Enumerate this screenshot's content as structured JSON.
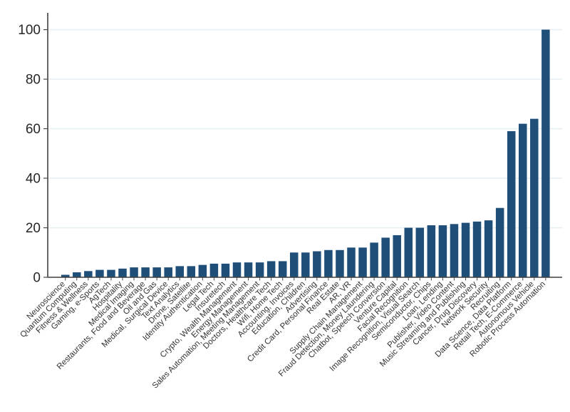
{
  "chart_data": {
    "type": "bar",
    "title": "",
    "xlabel": "",
    "ylabel": "",
    "ylim": [
      0,
      100
    ],
    "yticks": [
      0,
      20,
      40,
      60,
      80,
      100
    ],
    "grid": "horizontal",
    "legend": "none",
    "categories": [
      "Neuroscience",
      "Quantum Computing",
      "Fitness & Wellness",
      "Gaming, e-Sports",
      "AgTech",
      "Hospitality",
      "Medical Imaging",
      "Restaurants, Food and Beverage",
      "Oil and Gas",
      "Medical, Surgical Device",
      "Text Analytics",
      "Drone, Satellite",
      "Identity Authentication",
      "Legal Tech",
      "Insuretech",
      "Crypto, Wealth Management",
      "Energy Management",
      "Sales Automation, Meeting Management",
      "Doctors, Healthcare Tech",
      "Wifi, Home Tech",
      "Accounting, Invoices",
      "Education, Children",
      "Advertising",
      "Credit Card, Personal Finance",
      "Real Estate",
      "AR, VR",
      "Supply Chain Management",
      "Fraud Detection, Money Laundering",
      "Chatbot, Speech Conversion",
      "Venture Capital",
      "Facial Recognition",
      "Image Recognition, Visual Search",
      "Semiconductor, Chips",
      "Loan, Lending",
      "Publisher, Video Content",
      "Music Streaming and Publishing",
      "Cancer, Drug Discovery",
      "Network Security",
      "Recruiting",
      "Data Science, Data Platform",
      "Retail Tech, E-Commerce",
      "Autonomous Vehicle",
      "Robotic Process Automation"
    ],
    "values": [
      1,
      2,
      2.5,
      3,
      3,
      3.5,
      4,
      4,
      4,
      4,
      4.5,
      4.5,
      5,
      5.5,
      5.5,
      6,
      6,
      6,
      6.5,
      6.5,
      10,
      10,
      10.5,
      11,
      11,
      12,
      12,
      14,
      16,
      17,
      20,
      20,
      21,
      21,
      21.5,
      22,
      22.5,
      23,
      28,
      59,
      62,
      64,
      100
    ],
    "colors": {
      "bar": "#1f4e79",
      "gridline": "#e7eff3",
      "axis": "#3f3f3f",
      "tick": "#4a4a4a",
      "tick_label": "#262626",
      "category_label": "#333333",
      "background": "#ffffff"
    }
  }
}
